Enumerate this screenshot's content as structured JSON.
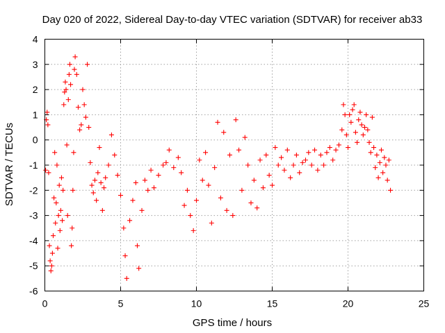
{
  "chart_data": {
    "type": "scatter",
    "title": "Day 020 of 2022, Sidereal Day-to-day VTEC variation (SDTVAR) for receiver ab33",
    "xlabel": "GPS time / hours",
    "ylabel": "SDTVAR / TECUs",
    "xlim": [
      0,
      25
    ],
    "ylim": [
      -6,
      4
    ],
    "x_ticks": [
      "0",
      "5",
      "10",
      "15",
      "20",
      "25"
    ],
    "y_ticks": [
      "-6",
      "-5",
      "-4",
      "-3",
      "-2",
      "-1",
      "0",
      "1",
      "2",
      "3",
      "4"
    ],
    "grid": true,
    "marker": "+",
    "color": "#ff0000",
    "series": [
      {
        "name": "SDTVAR",
        "points": [
          [
            0.05,
            -1.2
          ],
          [
            0.1,
            0.8
          ],
          [
            0.15,
            1.1
          ],
          [
            0.2,
            0.6
          ],
          [
            0.25,
            -1.3
          ],
          [
            0.3,
            -4.2
          ],
          [
            0.35,
            -4.8
          ],
          [
            0.4,
            -5.2
          ],
          [
            0.45,
            -5.0
          ],
          [
            0.5,
            -4.5
          ],
          [
            0.55,
            -3.8
          ],
          [
            0.6,
            -2.3
          ],
          [
            0.65,
            -0.5
          ],
          [
            0.7,
            -3.3
          ],
          [
            0.75,
            -2.5
          ],
          [
            0.8,
            -1.0
          ],
          [
            0.85,
            -4.3
          ],
          [
            0.9,
            -3.0
          ],
          [
            0.95,
            -1.8
          ],
          [
            1.0,
            -3.6
          ],
          [
            1.05,
            -2.8
          ],
          [
            1.1,
            -1.5
          ],
          [
            1.15,
            -3.2
          ],
          [
            1.2,
            -2.0
          ],
          [
            1.25,
            1.4
          ],
          [
            1.3,
            1.9
          ],
          [
            1.35,
            2.3
          ],
          [
            1.4,
            2.0
          ],
          [
            1.45,
            -0.2
          ],
          [
            1.5,
            -3.0
          ],
          [
            1.55,
            1.6
          ],
          [
            1.6,
            2.6
          ],
          [
            1.65,
            3.0
          ],
          [
            1.7,
            2.2
          ],
          [
            1.75,
            -4.2
          ],
          [
            1.8,
            -3.5
          ],
          [
            1.85,
            -2.0
          ],
          [
            1.9,
            -0.5
          ],
          [
            1.95,
            2.8
          ],
          [
            2.0,
            3.3
          ],
          [
            2.1,
            2.6
          ],
          [
            2.2,
            1.3
          ],
          [
            2.3,
            0.4
          ],
          [
            2.4,
            0.6
          ],
          [
            2.5,
            2.0
          ],
          [
            2.6,
            1.4
          ],
          [
            2.7,
            0.9
          ],
          [
            2.8,
            3.0
          ],
          [
            2.9,
            0.5
          ],
          [
            3.0,
            -0.9
          ],
          [
            3.1,
            -1.8
          ],
          [
            3.2,
            -2.1
          ],
          [
            3.3,
            -1.6
          ],
          [
            3.4,
            -2.4
          ],
          [
            3.5,
            -1.3
          ],
          [
            3.6,
            -0.3
          ],
          [
            3.7,
            -1.7
          ],
          [
            3.8,
            -2.8
          ],
          [
            3.9,
            -1.9
          ],
          [
            4.0,
            -1.5
          ],
          [
            4.2,
            -1.0
          ],
          [
            4.4,
            0.2
          ],
          [
            4.6,
            -0.6
          ],
          [
            4.8,
            -1.4
          ],
          [
            5.0,
            -2.2
          ],
          [
            5.2,
            -3.5
          ],
          [
            5.3,
            -4.6
          ],
          [
            5.4,
            -5.5
          ],
          [
            5.6,
            -3.2
          ],
          [
            5.8,
            -2.4
          ],
          [
            6.0,
            -1.7
          ],
          [
            6.1,
            -4.2
          ],
          [
            6.2,
            -5.1
          ],
          [
            6.4,
            -2.8
          ],
          [
            6.6,
            -1.6
          ],
          [
            6.8,
            -2.0
          ],
          [
            7.0,
            -1.2
          ],
          [
            7.2,
            -1.9
          ],
          [
            7.5,
            -1.4
          ],
          [
            7.8,
            -1.0
          ],
          [
            8.0,
            -0.9
          ],
          [
            8.2,
            -0.4
          ],
          [
            8.5,
            -1.1
          ],
          [
            8.8,
            -0.7
          ],
          [
            9.0,
            -1.3
          ],
          [
            9.2,
            -2.6
          ],
          [
            9.4,
            -2.0
          ],
          [
            9.6,
            -3.0
          ],
          [
            9.8,
            -3.6
          ],
          [
            10.0,
            -2.4
          ],
          [
            10.2,
            -0.8
          ],
          [
            10.4,
            -1.6
          ],
          [
            10.6,
            -0.5
          ],
          [
            10.8,
            -1.8
          ],
          [
            11.0,
            -3.3
          ],
          [
            11.2,
            -1.1
          ],
          [
            11.4,
            0.7
          ],
          [
            11.6,
            -2.3
          ],
          [
            11.8,
            0.3
          ],
          [
            12.0,
            -2.8
          ],
          [
            12.2,
            -0.6
          ],
          [
            12.4,
            -3.0
          ],
          [
            12.6,
            0.8
          ],
          [
            12.8,
            -0.4
          ],
          [
            13.0,
            -2.0
          ],
          [
            13.2,
            0.1
          ],
          [
            13.4,
            -1.0
          ],
          [
            13.6,
            -2.5
          ],
          [
            13.8,
            -1.6
          ],
          [
            14.0,
            -2.7
          ],
          [
            14.2,
            -0.8
          ],
          [
            14.4,
            -1.9
          ],
          [
            14.6,
            -0.6
          ],
          [
            14.8,
            -1.4
          ],
          [
            15.0,
            -1.8
          ],
          [
            15.2,
            -0.3
          ],
          [
            15.4,
            -1.0
          ],
          [
            15.6,
            -0.7
          ],
          [
            15.8,
            -1.2
          ],
          [
            16.0,
            -0.4
          ],
          [
            16.2,
            -1.5
          ],
          [
            16.4,
            -1.0
          ],
          [
            16.6,
            -0.6
          ],
          [
            16.8,
            -1.3
          ],
          [
            17.0,
            -0.9
          ],
          [
            17.2,
            -0.8
          ],
          [
            17.4,
            -0.5
          ],
          [
            17.6,
            -1.0
          ],
          [
            17.8,
            -0.4
          ],
          [
            18.0,
            -1.2
          ],
          [
            18.2,
            -0.6
          ],
          [
            18.4,
            -1.0
          ],
          [
            18.6,
            -0.5
          ],
          [
            18.8,
            -0.3
          ],
          [
            19.0,
            -0.8
          ],
          [
            19.2,
            -0.4
          ],
          [
            19.4,
            -0.2
          ],
          [
            19.6,
            0.4
          ],
          [
            19.7,
            1.4
          ],
          [
            19.8,
            1.0
          ],
          [
            19.9,
            0.2
          ],
          [
            20.0,
            -0.3
          ],
          [
            20.1,
            1.0
          ],
          [
            20.2,
            0.7
          ],
          [
            20.3,
            1.2
          ],
          [
            20.4,
            1.4
          ],
          [
            20.5,
            0.3
          ],
          [
            20.6,
            -0.1
          ],
          [
            20.7,
            0.8
          ],
          [
            20.8,
            1.1
          ],
          [
            20.9,
            0.6
          ],
          [
            21.0,
            0.2
          ],
          [
            21.1,
            0.5
          ],
          [
            21.2,
            1.0
          ],
          [
            21.3,
            0.4
          ],
          [
            21.4,
            -0.1
          ],
          [
            21.5,
            -0.5
          ],
          [
            21.6,
            0.9
          ],
          [
            21.7,
            -0.3
          ],
          [
            21.8,
            -1.1
          ],
          [
            21.9,
            -0.6
          ],
          [
            22.0,
            -1.5
          ],
          [
            22.1,
            -0.9
          ],
          [
            22.2,
            -0.4
          ],
          [
            22.3,
            -1.3
          ],
          [
            22.4,
            -0.7
          ],
          [
            22.5,
            -1.0
          ],
          [
            22.6,
            -1.6
          ],
          [
            22.7,
            -0.8
          ],
          [
            22.8,
            -2.0
          ]
        ]
      }
    ]
  }
}
